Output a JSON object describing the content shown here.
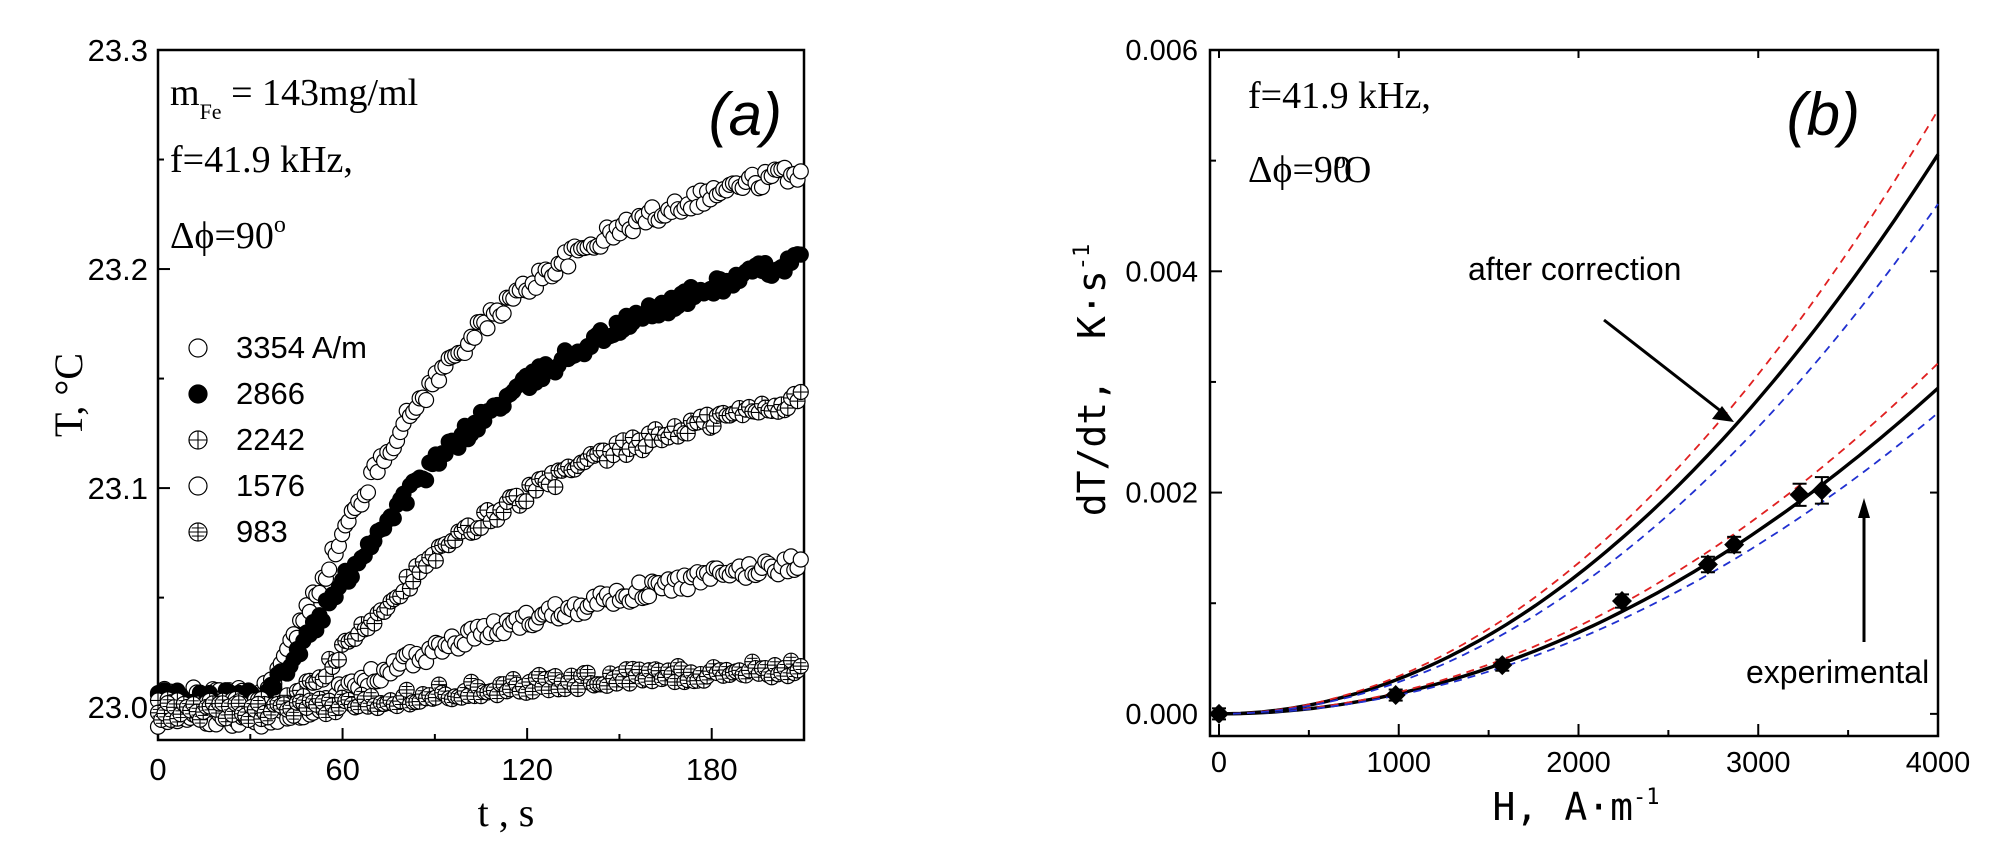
{
  "colors": {
    "axis": "#000000",
    "mean_line": "#000000",
    "upper_bound": "#e02020",
    "lower_bound": "#2030d0",
    "marker_fill_open": "#ffffff",
    "marker_fill_filled": "#000000"
  },
  "chart_data": [
    {
      "id": "a",
      "type": "scatter",
      "panel_label": "(a)",
      "xlabel": "t , s",
      "ylabel": "T, °C",
      "xlim": [
        0,
        210
      ],
      "ylim": [
        22.985,
        23.3
      ],
      "xticks": [
        0,
        60,
        120,
        180
      ],
      "yticks": [
        23.0,
        23.1,
        23.2,
        23.3
      ],
      "ytick_labels": [
        "23.0",
        "23.1",
        "23.2",
        "23.3"
      ],
      "grid": false,
      "legend_position": "middle-left",
      "annotations": {
        "mass_main": "m",
        "mass_sub": "Fe",
        "mass_value": " = 143mg/ml",
        "freq": "f=41.9 kHz,",
        "phase": "Δϕ=90",
        "phase_sup": "o"
      },
      "series": [
        {
          "name": "3354 A/m",
          "marker": "open-circle",
          "t0": 30,
          "T0": 23.005,
          "A": 0.26,
          "tau": 70,
          "noise": 0.004
        },
        {
          "name": "2866",
          "marker": "filled-circle",
          "t0": 30,
          "T0": 23.005,
          "A": 0.235,
          "tau": 95,
          "noise": 0.004
        },
        {
          "name": "2242",
          "marker": "circle-plus",
          "t0": 38,
          "T0": 23.0,
          "A": 0.165,
          "tau": 90,
          "noise": 0.004
        },
        {
          "name": "1576",
          "marker": "open-circle",
          "t0": 35,
          "T0": 22.995,
          "A": 0.1,
          "tau": 140,
          "noise": 0.004
        },
        {
          "name": " 983",
          "marker": "circle-plus-hatched",
          "t0": 35,
          "T0": 22.998,
          "A": 0.03,
          "tau": 160,
          "noise": 0.004
        }
      ]
    },
    {
      "id": "b",
      "type": "line",
      "panel_label": "(b)",
      "xlabel_main": "H,",
      "xlabel_unit": "A·m",
      "xlabel_sup": "-1",
      "ylabel_main": "dT/dt,",
      "ylabel_unit": "K·s",
      "ylabel_sup": "-1",
      "xlim": [
        -50,
        4000
      ],
      "ylim": [
        -0.0002,
        0.006
      ],
      "xticks": [
        0,
        1000,
        2000,
        3000,
        4000
      ],
      "yticks": [
        0.0,
        0.002,
        0.004,
        0.006
      ],
      "ytick_labels": [
        "0.000",
        "0.002",
        "0.004",
        "0.006"
      ],
      "grid": false,
      "annotations": {
        "freq": "f=41.9 kHz,",
        "phase": "Δϕ=90",
        "phase_sup": "o",
        "after_correction": "after correction",
        "experimental": "experimental"
      },
      "experimental_points": [
        {
          "H": 0,
          "dTdt": 0.0,
          "err": 5e-05
        },
        {
          "H": 983,
          "dTdt": 0.00017,
          "err": 5e-05
        },
        {
          "H": 1576,
          "dTdt": 0.00044,
          "err": 5e-05
        },
        {
          "H": 2242,
          "dTdt": 0.00102,
          "err": 6e-05
        },
        {
          "H": 2720,
          "dTdt": 0.00135,
          "err": 7e-05
        },
        {
          "H": 2866,
          "dTdt": 0.00153,
          "err": 7e-05
        },
        {
          "H": 3230,
          "dTdt": 0.00198,
          "err": 0.0001
        },
        {
          "H": 3354,
          "dTdt": 0.00202,
          "err": 0.00012
        }
      ],
      "fit_curves": [
        {
          "kind": "experimental-fit",
          "coef": 1.84e-10,
          "exp": 2,
          "style": "solid"
        },
        {
          "kind": "experimental-upper",
          "coef": 1.98e-10,
          "exp": 2,
          "style": "dashed-red"
        },
        {
          "kind": "experimental-lower",
          "coef": 1.7e-10,
          "exp": 2,
          "style": "dashed-blue"
        },
        {
          "kind": "corrected-fit",
          "coef": 3.16e-10,
          "exp": 2,
          "style": "solid"
        },
        {
          "kind": "corrected-upper",
          "coef": 3.41e-10,
          "exp": 2,
          "style": "dashed-red"
        },
        {
          "kind": "corrected-lower",
          "coef": 2.88e-10,
          "exp": 2,
          "style": "dashed-blue"
        }
      ]
    }
  ]
}
